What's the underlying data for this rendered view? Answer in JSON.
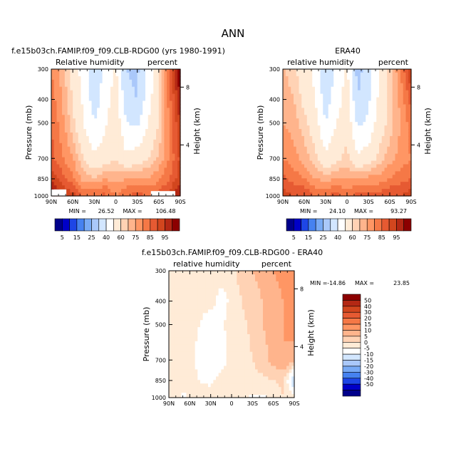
{
  "title": "ANN",
  "colors": {
    "cbar_abs": [
      "#00008b",
      "#0000c8",
      "#1e46e6",
      "#4682f0",
      "#78aaf5",
      "#aac8fa",
      "#d2e6ff",
      "#ffffff",
      "#ffebd7",
      "#ffd2b4",
      "#ffb48c",
      "#ff9664",
      "#f57846",
      "#e65a32",
      "#d2461e",
      "#b42814",
      "#8c0000"
    ],
    "cbar_diff": [
      "#00008b",
      "#0000c8",
      "#1e46e6",
      "#4682f0",
      "#78aaf5",
      "#aac8fa",
      "#d2e6ff",
      "#ffffff",
      "#ffebd7",
      "#ffd2b4",
      "#ffb48c",
      "#ff9664",
      "#f57846",
      "#e65a32",
      "#d2461e",
      "#b42814",
      "#8c0000"
    ],
    "missing": "#ffffff"
  },
  "chart_data": [
    {
      "type": "heatmap",
      "id": "model",
      "title": "f.e15b03ch.FAMIP.f09_f09.CLB-RDG00 (yrs 1980-1991)",
      "left_label": "Relative humidity",
      "right_label": "percent",
      "ylabel": "Pressure (mb)",
      "ylabel_right": "Height (km)",
      "x": [
        90,
        60,
        30,
        0,
        -30,
        -60,
        -90
      ],
      "x_ticks": [
        "90N",
        "60N",
        "30N",
        "0",
        "30S",
        "60S",
        "90S"
      ],
      "y_ticks": [
        300,
        400,
        500,
        700,
        850,
        1000
      ],
      "ylim": [
        300,
        1000
      ],
      "height_ticks": [
        "4",
        "8"
      ],
      "min_label": "MIN =",
      "min_value": "26.52",
      "max_label": "MAX =",
      "max_value": "106.48",
      "lat_nodes": [
        90,
        75,
        60,
        45,
        30,
        15,
        0,
        -15,
        -30,
        -45,
        -60,
        -75,
        -90
      ],
      "p_nodes": [
        1000,
        850,
        700,
        500,
        400,
        300
      ],
      "values": [
        [
          100,
          92,
          88,
          78,
          80,
          82,
          75,
          80,
          82,
          80,
          82,
          88,
          95
        ],
        [
          88,
          82,
          76,
          68,
          66,
          70,
          68,
          70,
          72,
          70,
          74,
          80,
          88
        ],
        [
          82,
          76,
          70,
          60,
          52,
          55,
          60,
          52,
          55,
          60,
          66,
          76,
          86
        ],
        [
          80,
          72,
          62,
          50,
          40,
          48,
          58,
          40,
          38,
          50,
          60,
          76,
          90
        ],
        [
          78,
          70,
          60,
          48,
          35,
          45,
          55,
          32,
          30,
          45,
          60,
          78,
          95
        ],
        [
          75,
          68,
          56,
          45,
          34,
          42,
          52,
          30,
          28,
          42,
          58,
          80,
          100
        ]
      ],
      "missing": [
        [
          90,
          69,
          1000,
          940
        ],
        [
          -49,
          -83,
          1000,
          955
        ]
      ],
      "levels": [
        5,
        10,
        15,
        20,
        25,
        30,
        40,
        50,
        60,
        65,
        70,
        75,
        80,
        85,
        90,
        95
      ]
    },
    {
      "type": "heatmap",
      "id": "obs",
      "title": "ERA40",
      "left_label": "relative humidity",
      "right_label": "percent",
      "ylabel": "Pressure (mb)",
      "ylabel_right": "Height (km)",
      "x": [
        90,
        60,
        30,
        0,
        -30,
        -60,
        -90
      ],
      "x_ticks": [
        "90N",
        "60N",
        "30N",
        "0",
        "30S",
        "60S",
        "90S"
      ],
      "y_ticks": [
        300,
        400,
        500,
        700,
        850,
        1000
      ],
      "ylim": [
        300,
        1000
      ],
      "height_ticks": [
        "4",
        "8"
      ],
      "min_label": "MIN =",
      "min_value": "24.10",
      "max_label": "MAX =",
      "max_value": "93.27",
      "lat_nodes": [
        90,
        75,
        60,
        45,
        30,
        15,
        0,
        -15,
        -30,
        -45,
        -60,
        -75,
        -90
      ],
      "p_nodes": [
        1000,
        850,
        700,
        500,
        400,
        300
      ],
      "values": [
        [
          88,
          85,
          85,
          80,
          80,
          82,
          78,
          82,
          82,
          82,
          85,
          85,
          88
        ],
        [
          82,
          78,
          75,
          70,
          68,
          70,
          70,
          70,
          72,
          72,
          75,
          78,
          80
        ],
        [
          75,
          72,
          68,
          62,
          52,
          58,
          62,
          52,
          55,
          62,
          68,
          72,
          75
        ],
        [
          70,
          68,
          62,
          55,
          40,
          50,
          58,
          38,
          42,
          55,
          62,
          70,
          78
        ],
        [
          68,
          65,
          58,
          50,
          35,
          45,
          55,
          30,
          38,
          52,
          62,
          72,
          82
        ],
        [
          66,
          62,
          55,
          48,
          32,
          42,
          52,
          26,
          35,
          50,
          62,
          75,
          90
        ]
      ],
      "missing": [],
      "levels": [
        5,
        10,
        15,
        20,
        25,
        30,
        40,
        50,
        60,
        65,
        70,
        75,
        80,
        85,
        90,
        95
      ]
    },
    {
      "type": "heatmap",
      "id": "diff",
      "title": "f.e15b03ch.FAMIP.f09_f09.CLB-RDG00 - ERA40",
      "left_label": "relative humidity",
      "right_label": "percent",
      "ylabel": "Pressure (mb)",
      "ylabel_right": "Height (km)",
      "x": [
        90,
        60,
        30,
        0,
        -30,
        -60,
        -90
      ],
      "x_ticks": [
        "90N",
        "60N",
        "30N",
        "0",
        "30S",
        "60S",
        "90S"
      ],
      "y_ticks": [
        300,
        400,
        500,
        700,
        850,
        1000
      ],
      "ylim": [
        300,
        1000
      ],
      "height_ticks": [
        "4",
        "8"
      ],
      "min_label": "MIN =",
      "min_value": "-14.86",
      "max_label": "MAX =",
      "max_value": "23.85",
      "lat_nodes": [
        90,
        75,
        60,
        45,
        30,
        15,
        0,
        -15,
        -30,
        -45,
        -60,
        -75,
        -90
      ],
      "p_nodes": [
        1000,
        850,
        700,
        500,
        400,
        300
      ],
      "values": [
        [
          3,
          2,
          2,
          1,
          2,
          3,
          1,
          2,
          3,
          3,
          2,
          5,
          3
        ],
        [
          3,
          2,
          2,
          0,
          -1,
          2,
          1,
          2,
          3,
          4,
          5,
          6,
          -12
        ],
        [
          2,
          2,
          3,
          -3,
          -5,
          -2,
          2,
          3,
          5,
          8,
          12,
          15,
          10
        ],
        [
          3,
          2,
          2,
          0,
          -3,
          -1,
          2,
          4,
          6,
          10,
          12,
          15,
          20
        ],
        [
          4,
          3,
          2,
          1,
          2,
          -2,
          1,
          5,
          8,
          10,
          12,
          15,
          18
        ],
        [
          5,
          4,
          3,
          2,
          3,
          2,
          3,
          8,
          10,
          12,
          15,
          18,
          20
        ]
      ],
      "missing": [
        [
          72,
          65,
          1000,
          955
        ],
        [
          -25,
          -50,
          1000,
          975
        ]
      ],
      "levels": [
        -50,
        -40,
        -30,
        -20,
        -15,
        -10,
        -5,
        0,
        5,
        10,
        15,
        20,
        25,
        30,
        40,
        50
      ]
    }
  ],
  "colorbar_abs": {
    "labels": [
      "5",
      "15",
      "25",
      "40",
      "60",
      "75",
      "85",
      "95"
    ]
  },
  "colorbar_diff": {
    "labels": [
      "50",
      "40",
      "30",
      "20",
      "15",
      "10",
      "5",
      "0",
      "-5",
      "-10",
      "-15",
      "-20",
      "-30",
      "-40",
      "-50"
    ]
  }
}
